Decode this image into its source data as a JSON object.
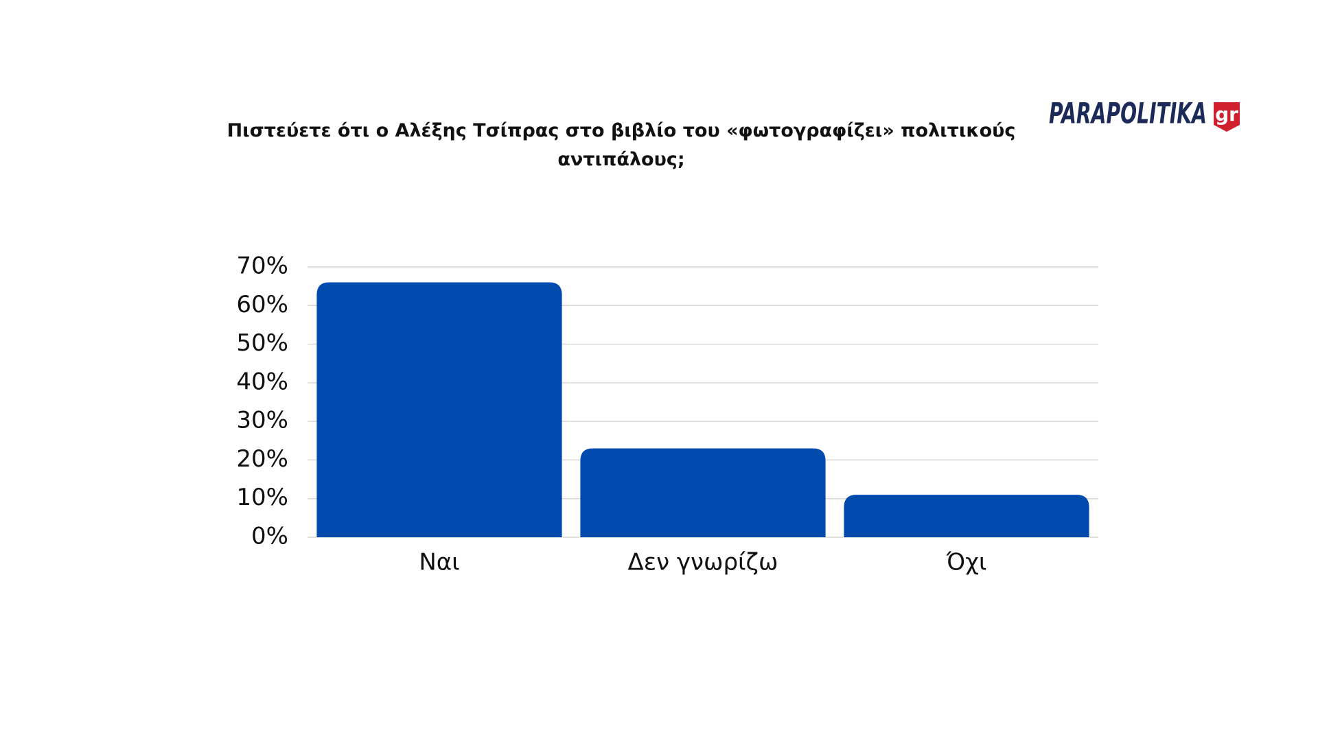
{
  "logo": {
    "name": "PARAPOLITIKA",
    "suffix": "gr"
  },
  "chart_data": {
    "type": "bar",
    "title": "Πιστεύετε ότι ο Αλέξης Τσίπρας στο βιβλίο του «φωτογραφίζει» πολιτικούς αντιπάλους;",
    "categories": [
      "Ναι",
      "Δεν γνωρίζω",
      "Όχι"
    ],
    "values": [
      66,
      23,
      11
    ],
    "color": "#004aad",
    "ylim": [
      0,
      70
    ],
    "yticks": [
      {
        "value": 0,
        "label": "0%"
      },
      {
        "value": 10,
        "label": "10%"
      },
      {
        "value": 20,
        "label": "20%"
      },
      {
        "value": 30,
        "label": "30%"
      },
      {
        "value": 40,
        "label": "40%"
      },
      {
        "value": 50,
        "label": "50%"
      },
      {
        "value": 60,
        "label": "60%"
      },
      {
        "value": 70,
        "label": "70%"
      }
    ],
    "grid": true
  }
}
